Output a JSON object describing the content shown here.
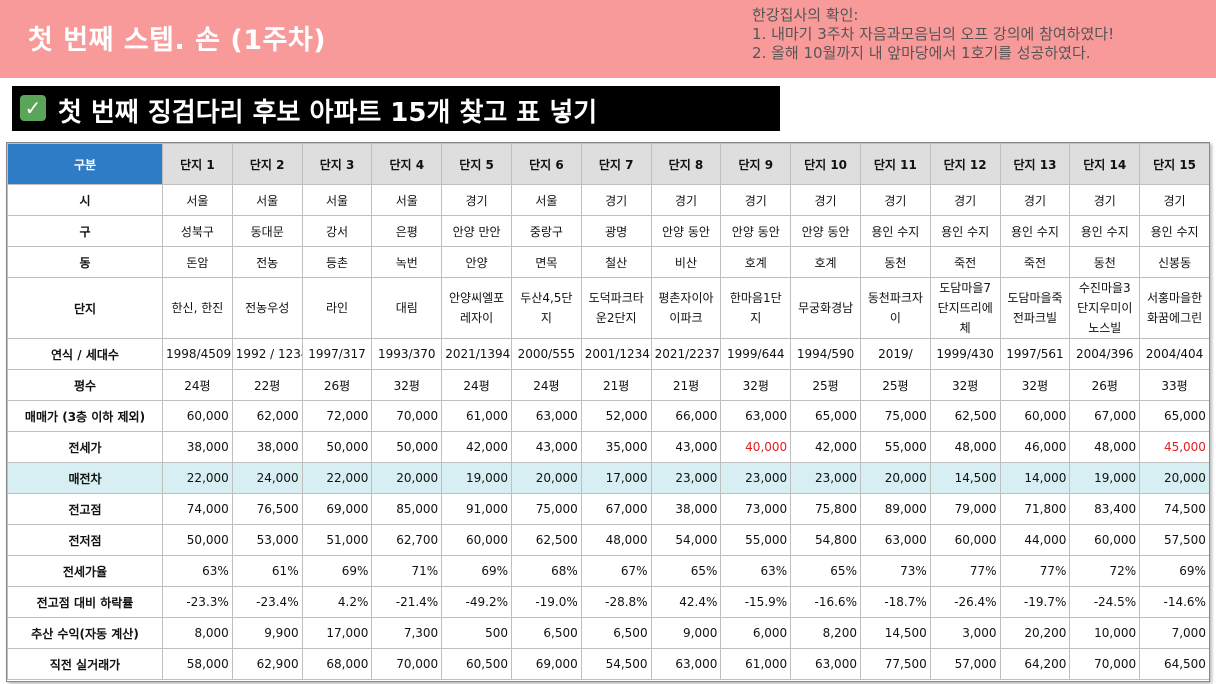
{
  "header": {
    "title": "첫 번째 스텝. 손 (1주차)",
    "notes": [
      "한강집사의 확인:",
      "1. 내마기 3주차 자음과모음님의 오프 강의에 참여하였다!",
      "2. 올해 10월까지 내 앞마당에서 1호기를 성공하였다."
    ]
  },
  "subtitle": {
    "check_icon": "check-mark-icon",
    "text": "첫 번째 징검다리 후보 아파트 15개 찾고 표 넣기"
  },
  "table": {
    "corner": "구분",
    "columns": [
      "단지 1",
      "단지 2",
      "단지 3",
      "단지 4",
      "단지 5",
      "단지 6",
      "단지 7",
      "단지 8",
      "단지 9",
      "단지 10",
      "단지 11",
      "단지 12",
      "단지 13",
      "단지 14",
      "단지 15"
    ],
    "rows": [
      {
        "label": "시",
        "values": [
          "서울",
          "서울",
          "서울",
          "서울",
          "경기",
          "서울",
          "경기",
          "경기",
          "경기",
          "경기",
          "경기",
          "경기",
          "경기",
          "경기",
          "경기"
        ]
      },
      {
        "label": "구",
        "values": [
          "성북구",
          "동대문",
          "강서",
          "은평",
          "안양 만안",
          "중랑구",
          "광명",
          "안양 동안",
          "안양 동안",
          "안양 동안",
          "용인 수지",
          "용인 수지",
          "용인 수지",
          "용인 수지",
          "용인 수지"
        ]
      },
      {
        "label": "동",
        "values": [
          "돈암",
          "전농",
          "등촌",
          "녹번",
          "안양",
          "면목",
          "철산",
          "비산",
          "호계",
          "호계",
          "동천",
          "죽전",
          "죽전",
          "동천",
          "신봉동"
        ]
      },
      {
        "label": "단지",
        "values": [
          "한신, 한진",
          "전농우성",
          "라인",
          "대림",
          "안양씨엘포레자이",
          "두산4,5단지",
          "도덕파크타운2단지",
          "평촌자이아이파크",
          "한마음1단지",
          "무궁화경남",
          "동천파크자이",
          "도담마을7단지뜨리에체",
          "도담마을죽전파크빌",
          "수진마을3단지우미이노스빌",
          "서홍마을한화꿈에그린"
        ]
      },
      {
        "label": "연식 / 세대수",
        "values": [
          "1998/4509",
          "1992 / 1234",
          "1997/317",
          "1993/370",
          "2021/1394",
          "2000/555",
          "2001/1234",
          "2021/2237",
          "1999/644",
          "1994/590",
          "2019/",
          "1999/430",
          "1997/561",
          "2004/396",
          "2004/404"
        ]
      },
      {
        "label": "평수",
        "values": [
          "24평",
          "22평",
          "26평",
          "32평",
          "24평",
          "24평",
          "21평",
          "21평",
          "32평",
          "25평",
          "25평",
          "32평",
          "32평",
          "26평",
          "33평"
        ]
      },
      {
        "label": "매매가 (3층 이하 제외)",
        "values": [
          "60,000",
          "62,000",
          "72,000",
          "70,000",
          "61,000",
          "63,000",
          "52,000",
          "66,000",
          "63,000",
          "65,000",
          "75,000",
          "62,500",
          "60,000",
          "67,000",
          "65,000"
        ]
      },
      {
        "label": "전세가",
        "values": [
          "38,000",
          "38,000",
          "50,000",
          "50,000",
          "42,000",
          "43,000",
          "35,000",
          "43,000",
          "40,000",
          "42,000",
          "55,000",
          "48,000",
          "46,000",
          "48,000",
          "45,000"
        ],
        "red": [
          8,
          14
        ]
      },
      {
        "label": "매전차",
        "values": [
          "22,000",
          "24,000",
          "22,000",
          "20,000",
          "19,000",
          "20,000",
          "17,000",
          "23,000",
          "23,000",
          "23,000",
          "20,000",
          "14,500",
          "14,000",
          "19,000",
          "20,000"
        ],
        "highlight": true
      },
      {
        "label": "전고점",
        "values": [
          "74,000",
          "76,500",
          "69,000",
          "85,000",
          "91,000",
          "75,000",
          "67,000",
          "38,000",
          "73,000",
          "75,800",
          "89,000",
          "79,000",
          "71,800",
          "83,400",
          "74,500"
        ]
      },
      {
        "label": "전저점",
        "values": [
          "50,000",
          "53,000",
          "51,000",
          "62,700",
          "60,000",
          "62,500",
          "48,000",
          "54,000",
          "55,000",
          "54,800",
          "63,000",
          "60,000",
          "44,000",
          "60,000",
          "57,500"
        ]
      },
      {
        "label": "전세가율",
        "values": [
          "63%",
          "61%",
          "69%",
          "71%",
          "69%",
          "68%",
          "67%",
          "65%",
          "63%",
          "65%",
          "73%",
          "77%",
          "77%",
          "72%",
          "69%"
        ]
      },
      {
        "label": "전고점 대비 하락률",
        "values": [
          "-23.3%",
          "-23.4%",
          "4.2%",
          "-21.4%",
          "-49.2%",
          "-19.0%",
          "-28.8%",
          "42.4%",
          "-15.9%",
          "-16.6%",
          "-18.7%",
          "-26.4%",
          "-19.7%",
          "-24.5%",
          "-14.6%"
        ]
      },
      {
        "label": "추산 수익(자동 계산)",
        "values": [
          "8,000",
          "9,900",
          "17,000",
          "7,300",
          "500",
          "6,500",
          "6,500",
          "9,000",
          "6,000",
          "8,200",
          "14,500",
          "3,000",
          "20,200",
          "10,000",
          "7,000"
        ]
      },
      {
        "label": "직전 실거래가",
        "values": [
          "58,000",
          "62,900",
          "68,000",
          "70,000",
          "60,500",
          "69,000",
          "54,500",
          "63,000",
          "61,000",
          "63,000",
          "77,500",
          "57,000",
          "64,200",
          "70,000",
          "64,500"
        ]
      }
    ]
  },
  "colors": {
    "band": "#f99a9a",
    "corner": "#2e7bc6",
    "highlight": "#d7eef2",
    "red": "#e02020"
  }
}
